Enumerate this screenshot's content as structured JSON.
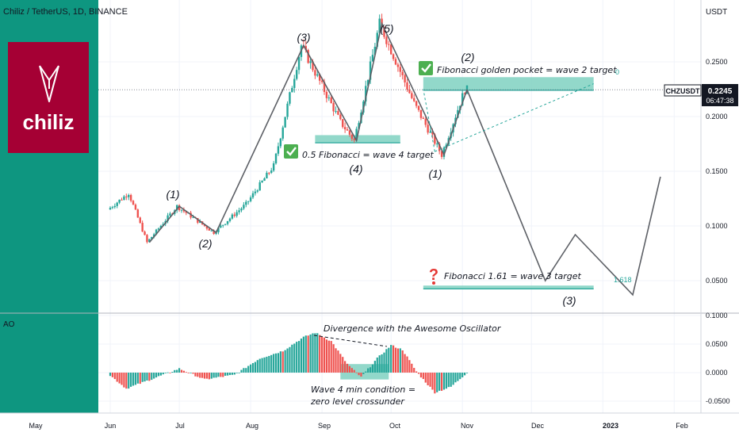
{
  "header": {
    "symbol_title": "Chiliz / TetherUS, 1D, BINANCE",
    "currency": "USDT"
  },
  "logo": {
    "text": "chiliz",
    "bg_color": "#A50034"
  },
  "colors": {
    "up": "#26A69A",
    "down": "#EF5350",
    "panel_teal": "#0E9680",
    "zone": "#7FD1C1",
    "line": "#5D6066",
    "price_tag": "#131722"
  },
  "price_tag": {
    "symbol": "CHZUSDT",
    "price": "0.2245",
    "countdown": "06:47:38",
    "value": 0.2245
  },
  "price_axis": {
    "ticks": [
      "0.2500",
      "0.2000",
      "0.1500",
      "0.1000",
      "0.0500"
    ],
    "values": [
      0.25,
      0.2,
      0.15,
      0.1,
      0.05
    ]
  },
  "ao_axis": {
    "label": "AO",
    "ticks": [
      "0.1000",
      "0.0500",
      "0.0000",
      "-0.0500"
    ],
    "values": [
      0.1,
      0.05,
      0.0,
      -0.05
    ]
  },
  "time_axis": {
    "labels": [
      "May",
      "Jun",
      "Jul",
      "Aug",
      "Sep",
      "Oct",
      "Nov",
      "Dec",
      "2023",
      "Feb"
    ]
  },
  "wave_labels": {
    "w1": "(1)",
    "w2": "(2)",
    "w3": "(3)",
    "w4": "(4)",
    "w5": "(5)",
    "c1": "(1)",
    "c2": "(2)",
    "c3": "(3)"
  },
  "annotations": {
    "fib_05": "0.5 Fibonacci = wave 4 target",
    "golden_pocket": "Fibonacci golden pocket = wave 2 target",
    "fib_161": "Fibonacci 1.61 = wave 3 target",
    "fib_zero": "0",
    "fib_1618": "1.618",
    "divergence": "Divergence with the Awesome Oscillator",
    "wave4_line1": "Wave 4 min condition =",
    "wave4_line2": "zero level crossunder"
  },
  "icons": {
    "check": "check-icon",
    "question": "question-mark-icon"
  },
  "chart_data": {
    "type": "candlestick",
    "title": "Chiliz / TetherUS, 1D, BINANCE",
    "y_unit": "USDT",
    "ylim": [
      0.032,
      0.285
    ],
    "last_price": 0.2245,
    "price_anchors": [
      {
        "x": "Jun 1",
        "y": 0.115
      },
      {
        "x": "Jun 10",
        "y": 0.13
      },
      {
        "x": "Jun 18",
        "y": 0.085
      },
      {
        "x": "Jul 1",
        "y": 0.118
      },
      {
        "x": "Jul 17",
        "y": 0.094
      },
      {
        "x": "Jul 31",
        "y": 0.12
      },
      {
        "x": "Aug 12",
        "y": 0.155
      },
      {
        "x": "Aug 24",
        "y": 0.265
      },
      {
        "x": "Sep 10",
        "y": 0.195
      },
      {
        "x": "Sep 16",
        "y": 0.178
      },
      {
        "x": "Sep 27",
        "y": 0.285
      },
      {
        "x": "Oct 12",
        "y": 0.212
      },
      {
        "x": "Oct 24",
        "y": 0.165
      },
      {
        "x": "Nov 3",
        "y": 0.2245
      }
    ],
    "projection_path": [
      {
        "x": "Nov 3",
        "y": 0.2245
      },
      {
        "x": "Dec 7",
        "y": 0.05
      },
      {
        "x": "Dec 20",
        "y": 0.092
      },
      {
        "x": "Jan 14",
        "y": 0.037
      },
      {
        "x": "Jan 26",
        "y": 0.145
      }
    ],
    "elliott_path": [
      {
        "x": "Jun 18",
        "y": 0.085
      },
      {
        "x": "Jul 1",
        "y": 0.118
      },
      {
        "x": "Jul 17",
        "y": 0.094
      },
      {
        "x": "Aug 24",
        "y": 0.265
      },
      {
        "x": "Sep 16",
        "y": 0.178
      },
      {
        "x": "Sep 27",
        "y": 0.285
      },
      {
        "x": "Oct 24",
        "y": 0.165
      },
      {
        "x": "Nov 3",
        "y": 0.2245
      }
    ],
    "zones": [
      {
        "label": "0.5 Fibonacci = wave 4 target",
        "from": "Aug 29",
        "to": "Oct 5",
        "y1": 0.176,
        "y2": 0.183
      },
      {
        "label": "Fibonacci golden pocket = wave 2 target",
        "from": "Oct 15",
        "to": "Dec 28",
        "y1": 0.224,
        "y2": 0.236
      },
      {
        "label": "Fibonacci 1.61 = wave 3 target",
        "from": "Oct 15",
        "to": "Dec 28",
        "y1": 0.0425,
        "y2": 0.0455
      }
    ],
    "ao_ylim": [
      -0.062,
      0.105
    ],
    "ao_anchors": [
      {
        "x": "Jun 1",
        "y": -0.005
      },
      {
        "x": "Jun 8",
        "y": -0.028
      },
      {
        "x": "Jun 20",
        "y": -0.01
      },
      {
        "x": "Jul 1",
        "y": 0.007
      },
      {
        "x": "Jul 12",
        "y": -0.012
      },
      {
        "x": "Jul 25",
        "y": -0.004
      },
      {
        "x": "Aug 5",
        "y": 0.025
      },
      {
        "x": "Aug 15",
        "y": 0.038
      },
      {
        "x": "Aug 24",
        "y": 0.062
      },
      {
        "x": "Aug 29",
        "y": 0.07
      },
      {
        "x": "Sep 5",
        "y": 0.055
      },
      {
        "x": "Sep 12",
        "y": 0.015
      },
      {
        "x": "Sep 18",
        "y": -0.008
      },
      {
        "x": "Sep 25",
        "y": 0.025
      },
      {
        "x": "Oct 1",
        "y": 0.048
      },
      {
        "x": "Oct 6",
        "y": 0.04
      },
      {
        "x": "Oct 12",
        "y": 0.002
      },
      {
        "x": "Oct 20",
        "y": -0.035
      },
      {
        "x": "Oct 27",
        "y": -0.025
      },
      {
        "x": "Nov 3",
        "y": 0.0
      }
    ]
  }
}
